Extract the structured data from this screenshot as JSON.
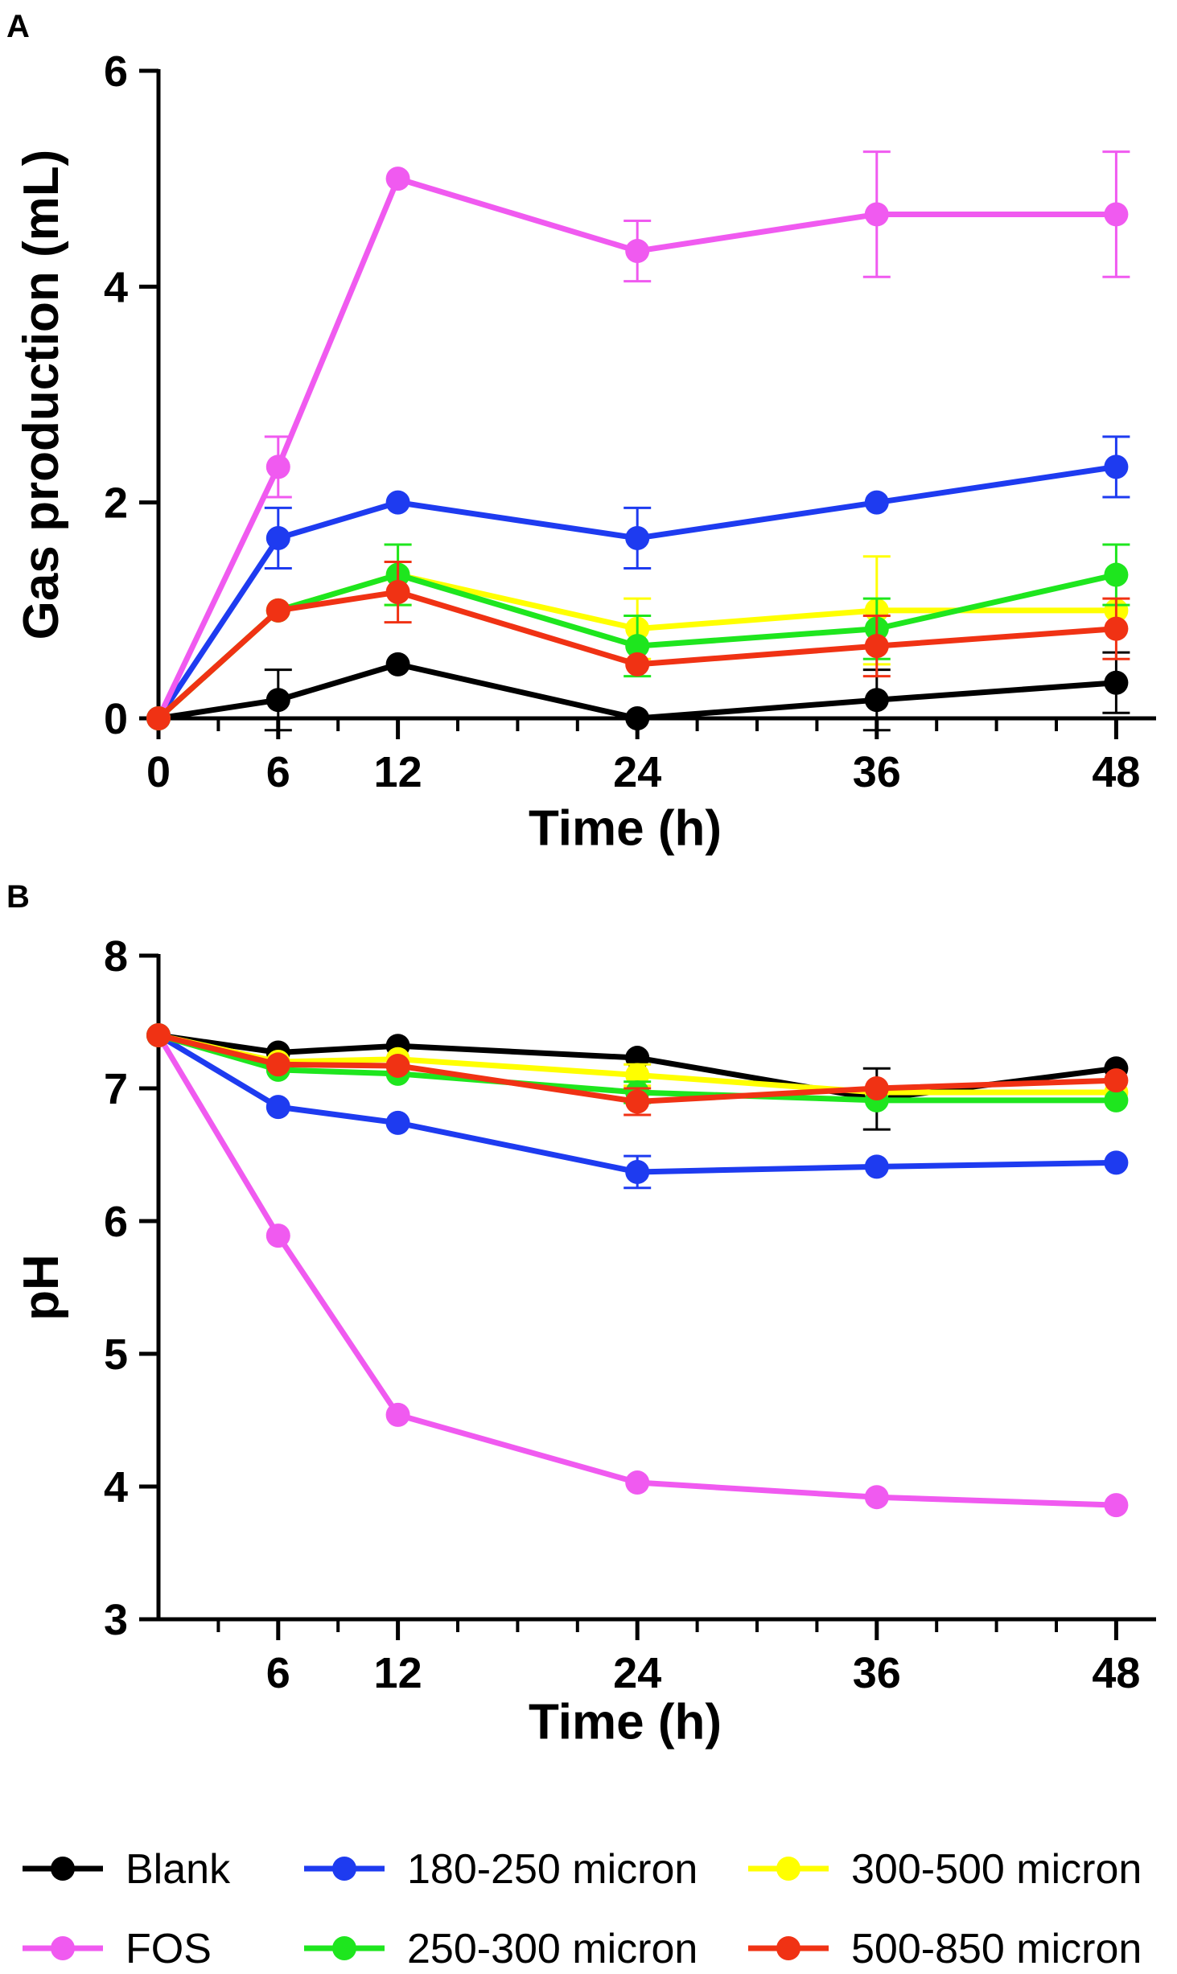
{
  "chart_data": [
    {
      "panel": "A",
      "type": "line",
      "title": "",
      "xlabel": "Time (h)",
      "ylabel": "Gas production (mL)",
      "xlim": [
        0,
        50
      ],
      "ylim": [
        0,
        6
      ],
      "xticks": [
        0,
        6,
        12,
        24,
        36,
        48
      ],
      "yticks": [
        0,
        2,
        4,
        6
      ],
      "x": [
        0,
        6,
        12,
        24,
        36,
        48
      ],
      "series": [
        {
          "name": "Blank",
          "color": "#000000",
          "values": [
            0,
            0.17,
            0.5,
            0,
            0.17,
            0.33
          ],
          "errors": [
            0,
            0.28,
            0,
            0,
            0.28,
            0.28
          ]
        },
        {
          "name": "180-250 micron",
          "color": "#1e3bf0",
          "values": [
            0,
            1.67,
            2.0,
            1.67,
            2.0,
            2.33
          ],
          "errors": [
            0,
            0.28,
            0,
            0.28,
            0,
            0.28
          ]
        },
        {
          "name": "300-500 micron",
          "color": "#ffff00",
          "values": [
            0,
            1.0,
            1.33,
            0.83,
            1.0,
            1.0
          ],
          "errors": [
            0,
            0,
            0.28,
            0.28,
            0.5,
            0
          ]
        },
        {
          "name": "FOS",
          "color": "#f05af0",
          "values": [
            0,
            2.33,
            5.0,
            4.33,
            4.67,
            4.67
          ],
          "errors": [
            0,
            0.28,
            0,
            0.28,
            0.58,
            0.58
          ]
        },
        {
          "name": "250-300 micron",
          "color": "#1ee61e",
          "values": [
            0,
            1.0,
            1.33,
            0.67,
            0.83,
            1.33
          ],
          "errors": [
            0,
            0,
            0.28,
            0.28,
            0.28,
            0.28
          ]
        },
        {
          "name": "500-850 micron",
          "color": "#f03214",
          "values": [
            0,
            1.0,
            1.17,
            0.5,
            0.67,
            0.83
          ],
          "errors": [
            0,
            0,
            0.28,
            0,
            0.28,
            0.28
          ]
        }
      ]
    },
    {
      "panel": "B",
      "type": "line",
      "title": "",
      "xlabel": "Time (h)",
      "ylabel": "pH",
      "xlim": [
        0,
        50
      ],
      "ylim": [
        3,
        8
      ],
      "xticks": [
        6,
        12,
        24,
        36,
        48
      ],
      "yticks": [
        3,
        4,
        5,
        6,
        7,
        8
      ],
      "x": [
        0,
        6,
        12,
        24,
        36,
        48
      ],
      "series": [
        {
          "name": "Blank",
          "color": "#000000",
          "values": [
            7.4,
            7.27,
            7.32,
            7.23,
            6.92,
            7.15
          ],
          "errors": [
            0,
            0,
            0,
            0,
            0.23,
            0
          ]
        },
        {
          "name": "180-250 micron",
          "color": "#1e3bf0",
          "values": [
            7.4,
            6.86,
            6.74,
            6.37,
            6.41,
            6.44
          ],
          "errors": [
            0,
            0,
            0,
            0.12,
            0,
            0
          ]
        },
        {
          "name": "300-500 micron",
          "color": "#ffff00",
          "values": [
            7.4,
            7.2,
            7.22,
            7.1,
            6.97,
            6.97
          ],
          "errors": [
            0,
            0,
            0,
            0.08,
            0,
            0
          ]
        },
        {
          "name": "FOS",
          "color": "#f05af0",
          "values": [
            7.4,
            5.89,
            4.54,
            4.03,
            3.92,
            3.86
          ],
          "errors": [
            0,
            0,
            0,
            0,
            0,
            0
          ]
        },
        {
          "name": "250-300 micron",
          "color": "#1ee61e",
          "values": [
            7.4,
            7.14,
            7.11,
            6.97,
            6.91,
            6.91
          ],
          "errors": [
            0,
            0,
            0,
            0.08,
            0,
            0
          ]
        },
        {
          "name": "500-850 micron",
          "color": "#f03214",
          "values": [
            7.4,
            7.18,
            7.17,
            6.9,
            7.0,
            7.06
          ],
          "errors": [
            0,
            0,
            0,
            0.1,
            0,
            0
          ]
        }
      ]
    }
  ],
  "legend": {
    "placement": "bottom",
    "items": [
      {
        "label": "Blank",
        "color": "#000000"
      },
      {
        "label": "180-250 micron",
        "color": "#1e3bf0"
      },
      {
        "label": "300-500 micron",
        "color": "#ffff00"
      },
      {
        "label": "FOS",
        "color": "#f05af0"
      },
      {
        "label": "250-300 micron",
        "color": "#1ee61e"
      },
      {
        "label": "500-850 micron",
        "color": "#f03214"
      }
    ]
  }
}
